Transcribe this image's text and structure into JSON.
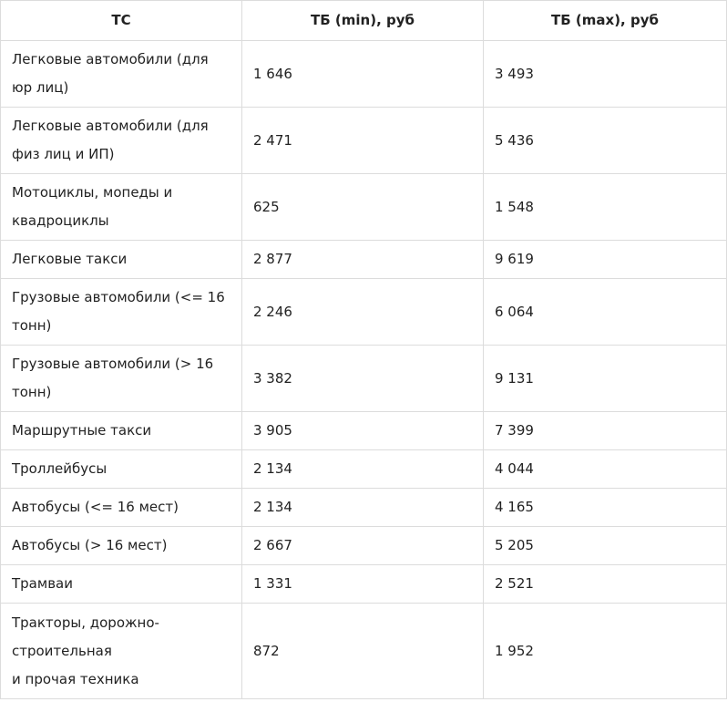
{
  "table": {
    "header": [
      "ТС",
      "ТБ (min), руб",
      "ТБ (max), руб"
    ],
    "rows": [
      [
        "Легковые автомобили (для юр лиц)",
        "1 646",
        "3 493"
      ],
      [
        "Легковые автомобили (для физ лиц и ИП)",
        "2 471",
        "5 436"
      ],
      [
        "Мотоциклы, мопеды и квадроциклы",
        "625",
        "1 548"
      ],
      [
        "Легковые такси",
        "2 877",
        "9 619"
      ],
      [
        "Грузовые автомобили (<= 16 тонн)",
        "2 246",
        "6 064"
      ],
      [
        "Грузовые автомобили (> 16 тонн)",
        "3 382",
        "9 131"
      ],
      [
        "Маршрутные такси",
        "3 905",
        "7 399"
      ],
      [
        "Троллейбусы",
        "2 134",
        "4 044"
      ],
      [
        "Автобусы (<= 16 мест)",
        "2 134",
        "4 165"
      ],
      [
        "Автобусы (> 16 мест)",
        "2 667",
        "5 205"
      ],
      [
        "Трамваи",
        "1 331",
        "2 521"
      ],
      [
        "Тракторы, дорожно-строительная\nи прочая техника",
        "872",
        "1 952"
      ]
    ]
  }
}
